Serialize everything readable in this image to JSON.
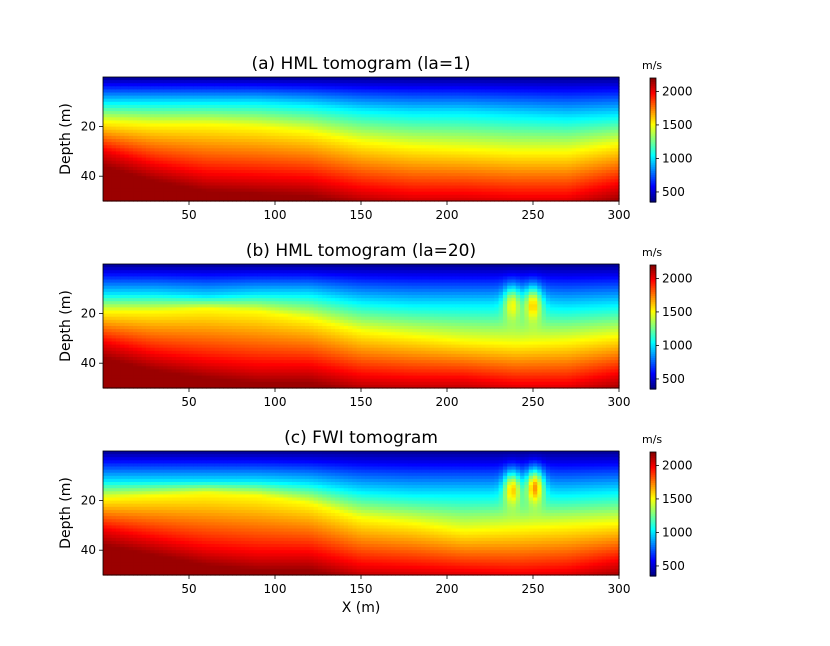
{
  "chart_data": [
    {
      "type": "heatmap",
      "title": "(a) HML tomogram (la=1)",
      "xlabel": "",
      "ylabel": "Depth (m)",
      "xlim": [
        0,
        300
      ],
      "ylim": [
        50,
        0
      ],
      "x_ticks": [
        "50",
        "100",
        "150",
        "200",
        "250",
        "300"
      ],
      "y_ticks": [
        "20",
        "40"
      ],
      "colorbar": {
        "unit": "m/s",
        "ticks": [
          "500",
          "1000",
          "1500",
          "2000"
        ],
        "range": [
          350,
          2200
        ],
        "colormap": "jet"
      },
      "profile": {
        "x": [
          0,
          30,
          60,
          90,
          120,
          150,
          180,
          210,
          240,
          270,
          300
        ],
        "depth_to_1000ms": [
          10,
          10,
          10,
          10,
          11,
          13,
          14,
          14,
          15,
          16,
          15
        ],
        "depth_to_1500ms": [
          18,
          19,
          19,
          20,
          22,
          26,
          28,
          29,
          30,
          30,
          27
        ],
        "depth_to_2000ms": [
          30,
          36,
          40,
          41,
          42,
          46,
          48,
          48,
          49,
          49,
          44
        ]
      },
      "anomalies": []
    },
    {
      "type": "heatmap",
      "title": "(b) HML tomogram (la=20)",
      "xlabel": "",
      "ylabel": "Depth (m)",
      "xlim": [
        0,
        300
      ],
      "ylim": [
        50,
        0
      ],
      "x_ticks": [
        "50",
        "100",
        "150",
        "200",
        "250",
        "300"
      ],
      "y_ticks": [
        "20",
        "40"
      ],
      "colorbar": {
        "unit": "m/s",
        "ticks": [
          "500",
          "1000",
          "1500",
          "2000"
        ],
        "range": [
          350,
          2200
        ],
        "colormap": "jet"
      },
      "profile": {
        "x": [
          0,
          30,
          60,
          90,
          120,
          150,
          180,
          210,
          240,
          270,
          300
        ],
        "depth_to_1000ms": [
          12,
          12,
          13,
          12,
          12,
          15,
          16,
          16,
          16,
          17,
          16
        ],
        "depth_to_1500ms": [
          19,
          19,
          18,
          19,
          22,
          27,
          29,
          31,
          32,
          31,
          29
        ],
        "depth_to_2000ms": [
          32,
          37,
          40,
          42,
          42,
          46,
          47,
          47,
          49,
          49,
          45
        ]
      },
      "anomalies": [
        {
          "x": 238,
          "depth": 17,
          "velocity": 1500
        },
        {
          "x": 250,
          "depth": 17,
          "velocity": 1600
        }
      ]
    },
    {
      "type": "heatmap",
      "title": "(c) FWI tomogram",
      "xlabel": "X (m)",
      "ylabel": "Depth (m)",
      "xlim": [
        0,
        300
      ],
      "ylim": [
        50,
        0
      ],
      "x_ticks": [
        "50",
        "100",
        "150",
        "200",
        "250",
        "300"
      ],
      "y_ticks": [
        "20",
        "40"
      ],
      "colorbar": {
        "unit": "m/s",
        "ticks": [
          "500",
          "1000",
          "1500",
          "2000"
        ],
        "range": [
          350,
          2200
        ],
        "colormap": "jet"
      },
      "profile": {
        "x": [
          0,
          30,
          60,
          90,
          120,
          150,
          180,
          210,
          240,
          270,
          300
        ],
        "depth_to_1000ms": [
          12,
          12,
          12,
          12,
          13,
          16,
          17,
          17,
          17,
          17,
          16
        ],
        "depth_to_1500ms": [
          19,
          18,
          17,
          18,
          21,
          27,
          29,
          32,
          31,
          30,
          29
        ],
        "depth_to_2000ms": [
          32,
          36,
          40,
          42,
          42,
          47,
          48,
          49,
          50,
          49,
          45
        ]
      },
      "anomalies": [
        {
          "x": 238,
          "depth": 16,
          "velocity": 1600
        },
        {
          "x": 251,
          "depth": 15,
          "velocity": 1700
        }
      ]
    }
  ]
}
